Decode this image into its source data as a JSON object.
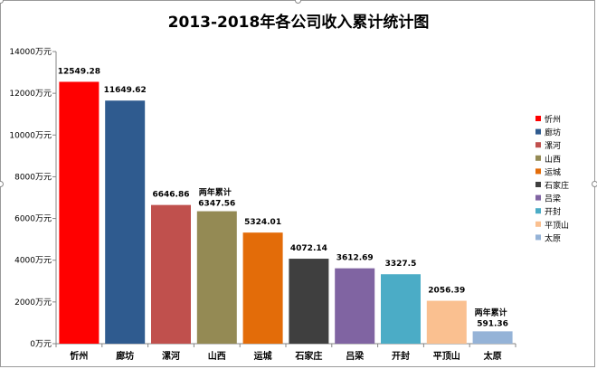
{
  "chart_data": {
    "type": "bar",
    "title": "2013-2018年各公司收入累计统计图",
    "categories": [
      "忻州",
      "廊坊",
      "漯河",
      "山西",
      "运城",
      "石家庄",
      "吕梁",
      "开封",
      "平顶山",
      "太原"
    ],
    "values": [
      12549.28,
      11649.62,
      6646.86,
      6347.56,
      5324.01,
      4072.14,
      3612.69,
      3327.5,
      2056.39,
      591.36
    ],
    "value_labels": [
      "12549.28",
      "11649.62",
      "6646.86",
      "6347.56",
      "5324.01",
      "4072.14",
      "3612.69",
      "3327.5",
      "2056.39",
      "591.36"
    ],
    "annotations": [
      {
        "category": "山西",
        "text": "两年累计"
      },
      {
        "category": "太原",
        "text": "两年累计"
      }
    ],
    "colors": [
      "#ff0000",
      "#2f5b8f",
      "#c0504d",
      "#948a54",
      "#e36c09",
      "#3f3f3f",
      "#8064a2",
      "#4bacc6",
      "#fac090",
      "#95b3d7"
    ],
    "yticks": [
      "0万元",
      "2000万元",
      "4000万元",
      "6000万元",
      "8000万元",
      "10000万元",
      "12000万元",
      "14000万元"
    ],
    "ylim": [
      0,
      14000
    ],
    "legend_position": "right",
    "grid": false,
    "xlabel": "",
    "ylabel": ""
  }
}
